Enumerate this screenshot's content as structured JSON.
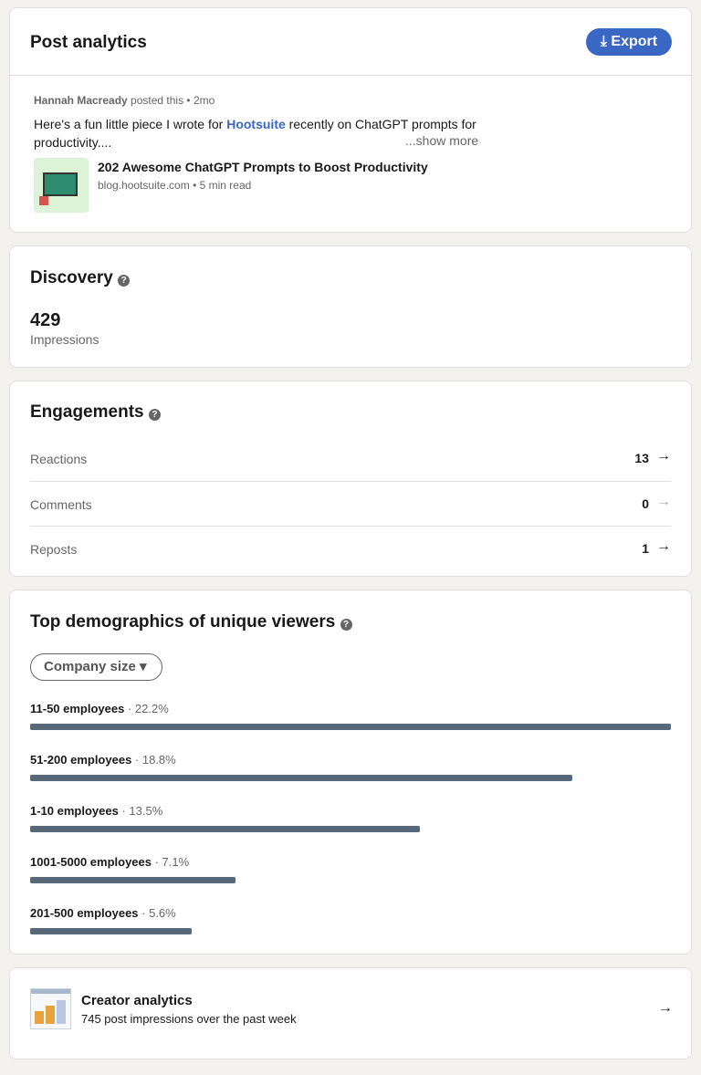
{
  "header": {
    "title": "Post analytics",
    "export_button": "Export"
  },
  "post": {
    "author": "Hannah Macready",
    "action": "posted this",
    "age": "2mo",
    "text_before": "Here's a fun little piece I wrote for ",
    "mention": "Hootsuite",
    "text_after": " recently on ChatGPT prompts for productivity....",
    "show_more": "...show more",
    "article_title": "202 Awesome ChatGPT Prompts to Boost Productivity",
    "article_source": "blog.hootsuite.com",
    "article_read_time": "5 min read"
  },
  "discovery": {
    "title": "Discovery",
    "impressions": 429,
    "impressions_label": "Impressions"
  },
  "engagements": {
    "title": "Engagements",
    "rows": [
      {
        "label": "Reactions",
        "value": 13
      },
      {
        "label": "Comments",
        "value": 0
      },
      {
        "label": "Reposts",
        "value": 1
      }
    ]
  },
  "demographics": {
    "title": "Top demographics of unique viewers",
    "filter": "Company size",
    "categories": [
      "11-50 employees",
      "51-200 employees",
      "1-10 employees",
      "1001-5000 employees",
      "201-500 employees"
    ],
    "values": [
      22.2,
      18.8,
      13.5,
      7.1,
      5.6
    ],
    "value_labels": [
      "22.2%",
      "18.8%",
      "13.5%",
      "7.1%",
      "5.6%"
    ],
    "color": "#56687a"
  },
  "creator_analytics": {
    "title": "Creator analytics",
    "subtitle": "745 post impressions over the past week"
  }
}
